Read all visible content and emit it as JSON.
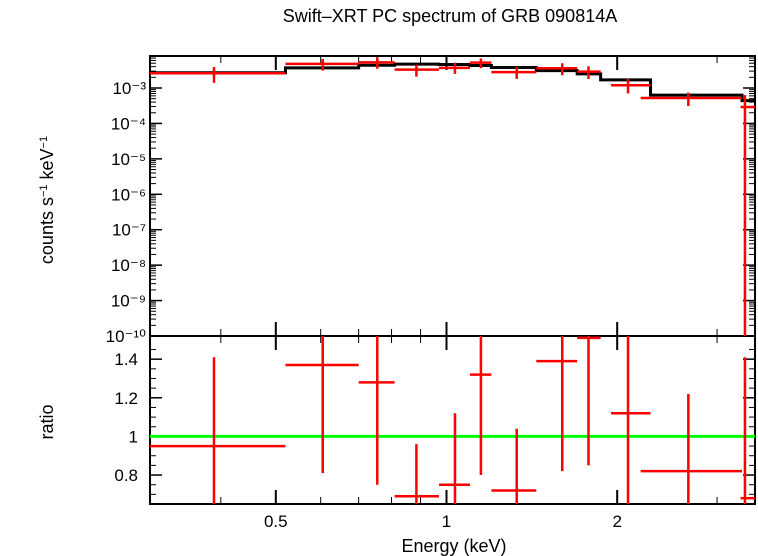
{
  "chart_data": [
    {
      "type": "line",
      "title": "Swift–XRT PC spectrum of GRB 090814A",
      "ylabel": "counts s⁻¹ keV⁻¹",
      "xscale": "log",
      "yscale": "log",
      "xlim": [
        0.3,
        3.5
      ],
      "ylim": [
        1e-10,
        0.008
      ],
      "y_tick_labels": [
        "10⁻³",
        "10⁻⁴",
        "10⁻⁵",
        "10⁻⁶",
        "10⁻⁷",
        "10⁻⁸",
        "10⁻⁹",
        "10⁻¹⁰"
      ],
      "y_tick_values": [
        0.001,
        0.0001,
        1e-05,
        1e-06,
        1e-07,
        1e-08,
        1e-09,
        1e-10
      ],
      "series": [
        {
          "kind": "data",
          "color": "#ff0000",
          "points": [
            {
              "x": 0.389,
              "xlo": 0.3,
              "xhi": 0.52,
              "y": 0.0026,
              "ylo": 0.0014,
              "yhi": 0.0039
            },
            {
              "x": 0.605,
              "xlo": 0.52,
              "xhi": 0.7,
              "y": 0.0048,
              "ylo": 0.0031,
              "yhi": 0.0066
            },
            {
              "x": 0.755,
              "xlo": 0.7,
              "xhi": 0.81,
              "y": 0.0053,
              "ylo": 0.0035,
              "yhi": 0.0074
            },
            {
              "x": 0.885,
              "xlo": 0.81,
              "xhi": 0.97,
              "y": 0.0033,
              "ylo": 0.0021,
              "yhi": 0.0046
            },
            {
              "x": 1.035,
              "xlo": 0.97,
              "xhi": 1.1,
              "y": 0.0037,
              "ylo": 0.0025,
              "yhi": 0.0052
            },
            {
              "x": 1.15,
              "xlo": 1.1,
              "xhi": 1.2,
              "y": 0.0052,
              "ylo": 0.0036,
              "yhi": 0.0068
            },
            {
              "x": 1.33,
              "xlo": 1.2,
              "xhi": 1.44,
              "y": 0.0028,
              "ylo": 0.0018,
              "yhi": 0.0039
            },
            {
              "x": 1.6,
              "xlo": 1.44,
              "xhi": 1.7,
              "y": 0.0036,
              "ylo": 0.0023,
              "yhi": 0.005
            },
            {
              "x": 1.78,
              "xlo": 1.7,
              "xhi": 1.87,
              "y": 0.0029,
              "ylo": 0.0018,
              "yhi": 0.0041
            },
            {
              "x": 2.09,
              "xlo": 1.95,
              "xhi": 2.29,
              "y": 0.0012,
              "ylo": 0.0007,
              "yhi": 0.0018
            },
            {
              "x": 2.67,
              "xlo": 2.2,
              "xhi": 3.32,
              "y": 0.00052,
              "ylo": 0.00031,
              "yhi": 0.00074
            },
            {
              "x": 3.36,
              "xlo": 3.3,
              "xhi": 3.5,
              "y": 0.00029,
              "ylo": 1e-10,
              "yhi": 0.00063
            }
          ]
        },
        {
          "kind": "model",
          "color": "#000000",
          "steps": [
            {
              "x0": 0.3,
              "x1": 0.52,
              "y": 0.0027
            },
            {
              "x0": 0.52,
              "x1": 0.7,
              "y": 0.0037
            },
            {
              "x0": 0.7,
              "x1": 0.81,
              "y": 0.0044
            },
            {
              "x0": 0.81,
              "x1": 0.97,
              "y": 0.0047
            },
            {
              "x0": 0.97,
              "x1": 1.1,
              "y": 0.0046
            },
            {
              "x0": 1.1,
              "x1": 1.2,
              "y": 0.0043
            },
            {
              "x0": 1.2,
              "x1": 1.44,
              "y": 0.0038
            },
            {
              "x0": 1.44,
              "x1": 1.7,
              "y": 0.0031
            },
            {
              "x0": 1.7,
              "x1": 1.87,
              "y": 0.0025
            },
            {
              "x0": 1.87,
              "x1": 2.29,
              "y": 0.0017
            },
            {
              "x0": 2.29,
              "x1": 3.32,
              "y": 0.00063
            },
            {
              "x0": 3.32,
              "x1": 3.5,
              "y": 0.00044
            }
          ]
        }
      ]
    },
    {
      "type": "scatter",
      "xlabel": "Energy (keV)",
      "ylabel": "ratio",
      "xscale": "log",
      "xlim": [
        0.3,
        3.5
      ],
      "ylim": [
        0.65,
        1.52
      ],
      "x_tick_labels": [
        "0.5",
        "1",
        "2"
      ],
      "x_tick_values": [
        0.5,
        1,
        2
      ],
      "y_tick_labels": [
        "1.4",
        "1.2",
        "1",
        "0.8"
      ],
      "y_tick_values": [
        1.4,
        1.2,
        1.0,
        0.8
      ],
      "reference_line": {
        "y": 1.0,
        "color": "#00ff00"
      },
      "series": [
        {
          "kind": "ratio",
          "color": "#ff0000",
          "points": [
            {
              "x": 0.389,
              "xlo": 0.3,
              "xhi": 0.52,
              "y": 0.95,
              "ylo": 0.48,
              "yhi": 1.41
            },
            {
              "x": 0.605,
              "xlo": 0.52,
              "xhi": 0.7,
              "y": 1.37,
              "ylo": 0.81,
              "yhi": 1.52
            },
            {
              "x": 0.755,
              "xlo": 0.7,
              "xhi": 0.81,
              "y": 1.28,
              "ylo": 0.75,
              "yhi": 1.52
            },
            {
              "x": 0.885,
              "xlo": 0.81,
              "xhi": 0.97,
              "y": 0.69,
              "ylo": 0.49,
              "yhi": 0.96
            },
            {
              "x": 1.035,
              "xlo": 0.97,
              "xhi": 1.1,
              "y": 0.75,
              "ylo": 0.5,
              "yhi": 1.12
            },
            {
              "x": 1.15,
              "xlo": 1.1,
              "xhi": 1.2,
              "y": 1.32,
              "ylo": 0.8,
              "yhi": 1.52
            },
            {
              "x": 1.33,
              "xlo": 1.2,
              "xhi": 1.44,
              "y": 0.72,
              "ylo": 0.42,
              "yhi": 1.04
            },
            {
              "x": 1.6,
              "xlo": 1.44,
              "xhi": 1.7,
              "y": 1.39,
              "ylo": 0.82,
              "yhi": 1.52
            },
            {
              "x": 1.78,
              "xlo": 1.7,
              "xhi": 1.87,
              "y": 1.51,
              "ylo": 0.85,
              "yhi": 1.52
            },
            {
              "x": 2.09,
              "xlo": 1.95,
              "xhi": 2.29,
              "y": 1.12,
              "ylo": 0.61,
              "yhi": 1.52
            },
            {
              "x": 2.67,
              "xlo": 2.2,
              "xhi": 3.32,
              "y": 0.82,
              "ylo": 0.47,
              "yhi": 1.22
            },
            {
              "x": 3.36,
              "xlo": 3.3,
              "xhi": 3.5,
              "y": 0.68,
              "ylo": 0.4,
              "yhi": 1.41
            }
          ]
        }
      ]
    }
  ]
}
